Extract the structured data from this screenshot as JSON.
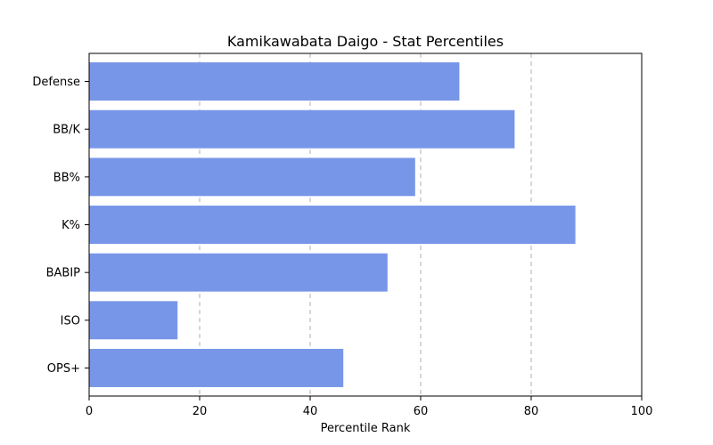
{
  "chart_data": {
    "type": "bar",
    "orientation": "horizontal",
    "title": "Kamikawabata Daigo - Stat Percentiles",
    "xlabel": "Percentile Rank",
    "ylabel": "",
    "categories": [
      "Defense",
      "BB/K",
      "BB%",
      "K%",
      "BABIP",
      "ISO",
      "OPS+"
    ],
    "values": [
      67,
      77,
      59,
      88,
      54,
      16,
      46
    ],
    "xlim": [
      0,
      100
    ],
    "xticks": [
      "0",
      "20",
      "40",
      "60",
      "80",
      "100"
    ],
    "bar_color": "#7896e8",
    "grid": "x-axis dashed",
    "legend": "none"
  }
}
